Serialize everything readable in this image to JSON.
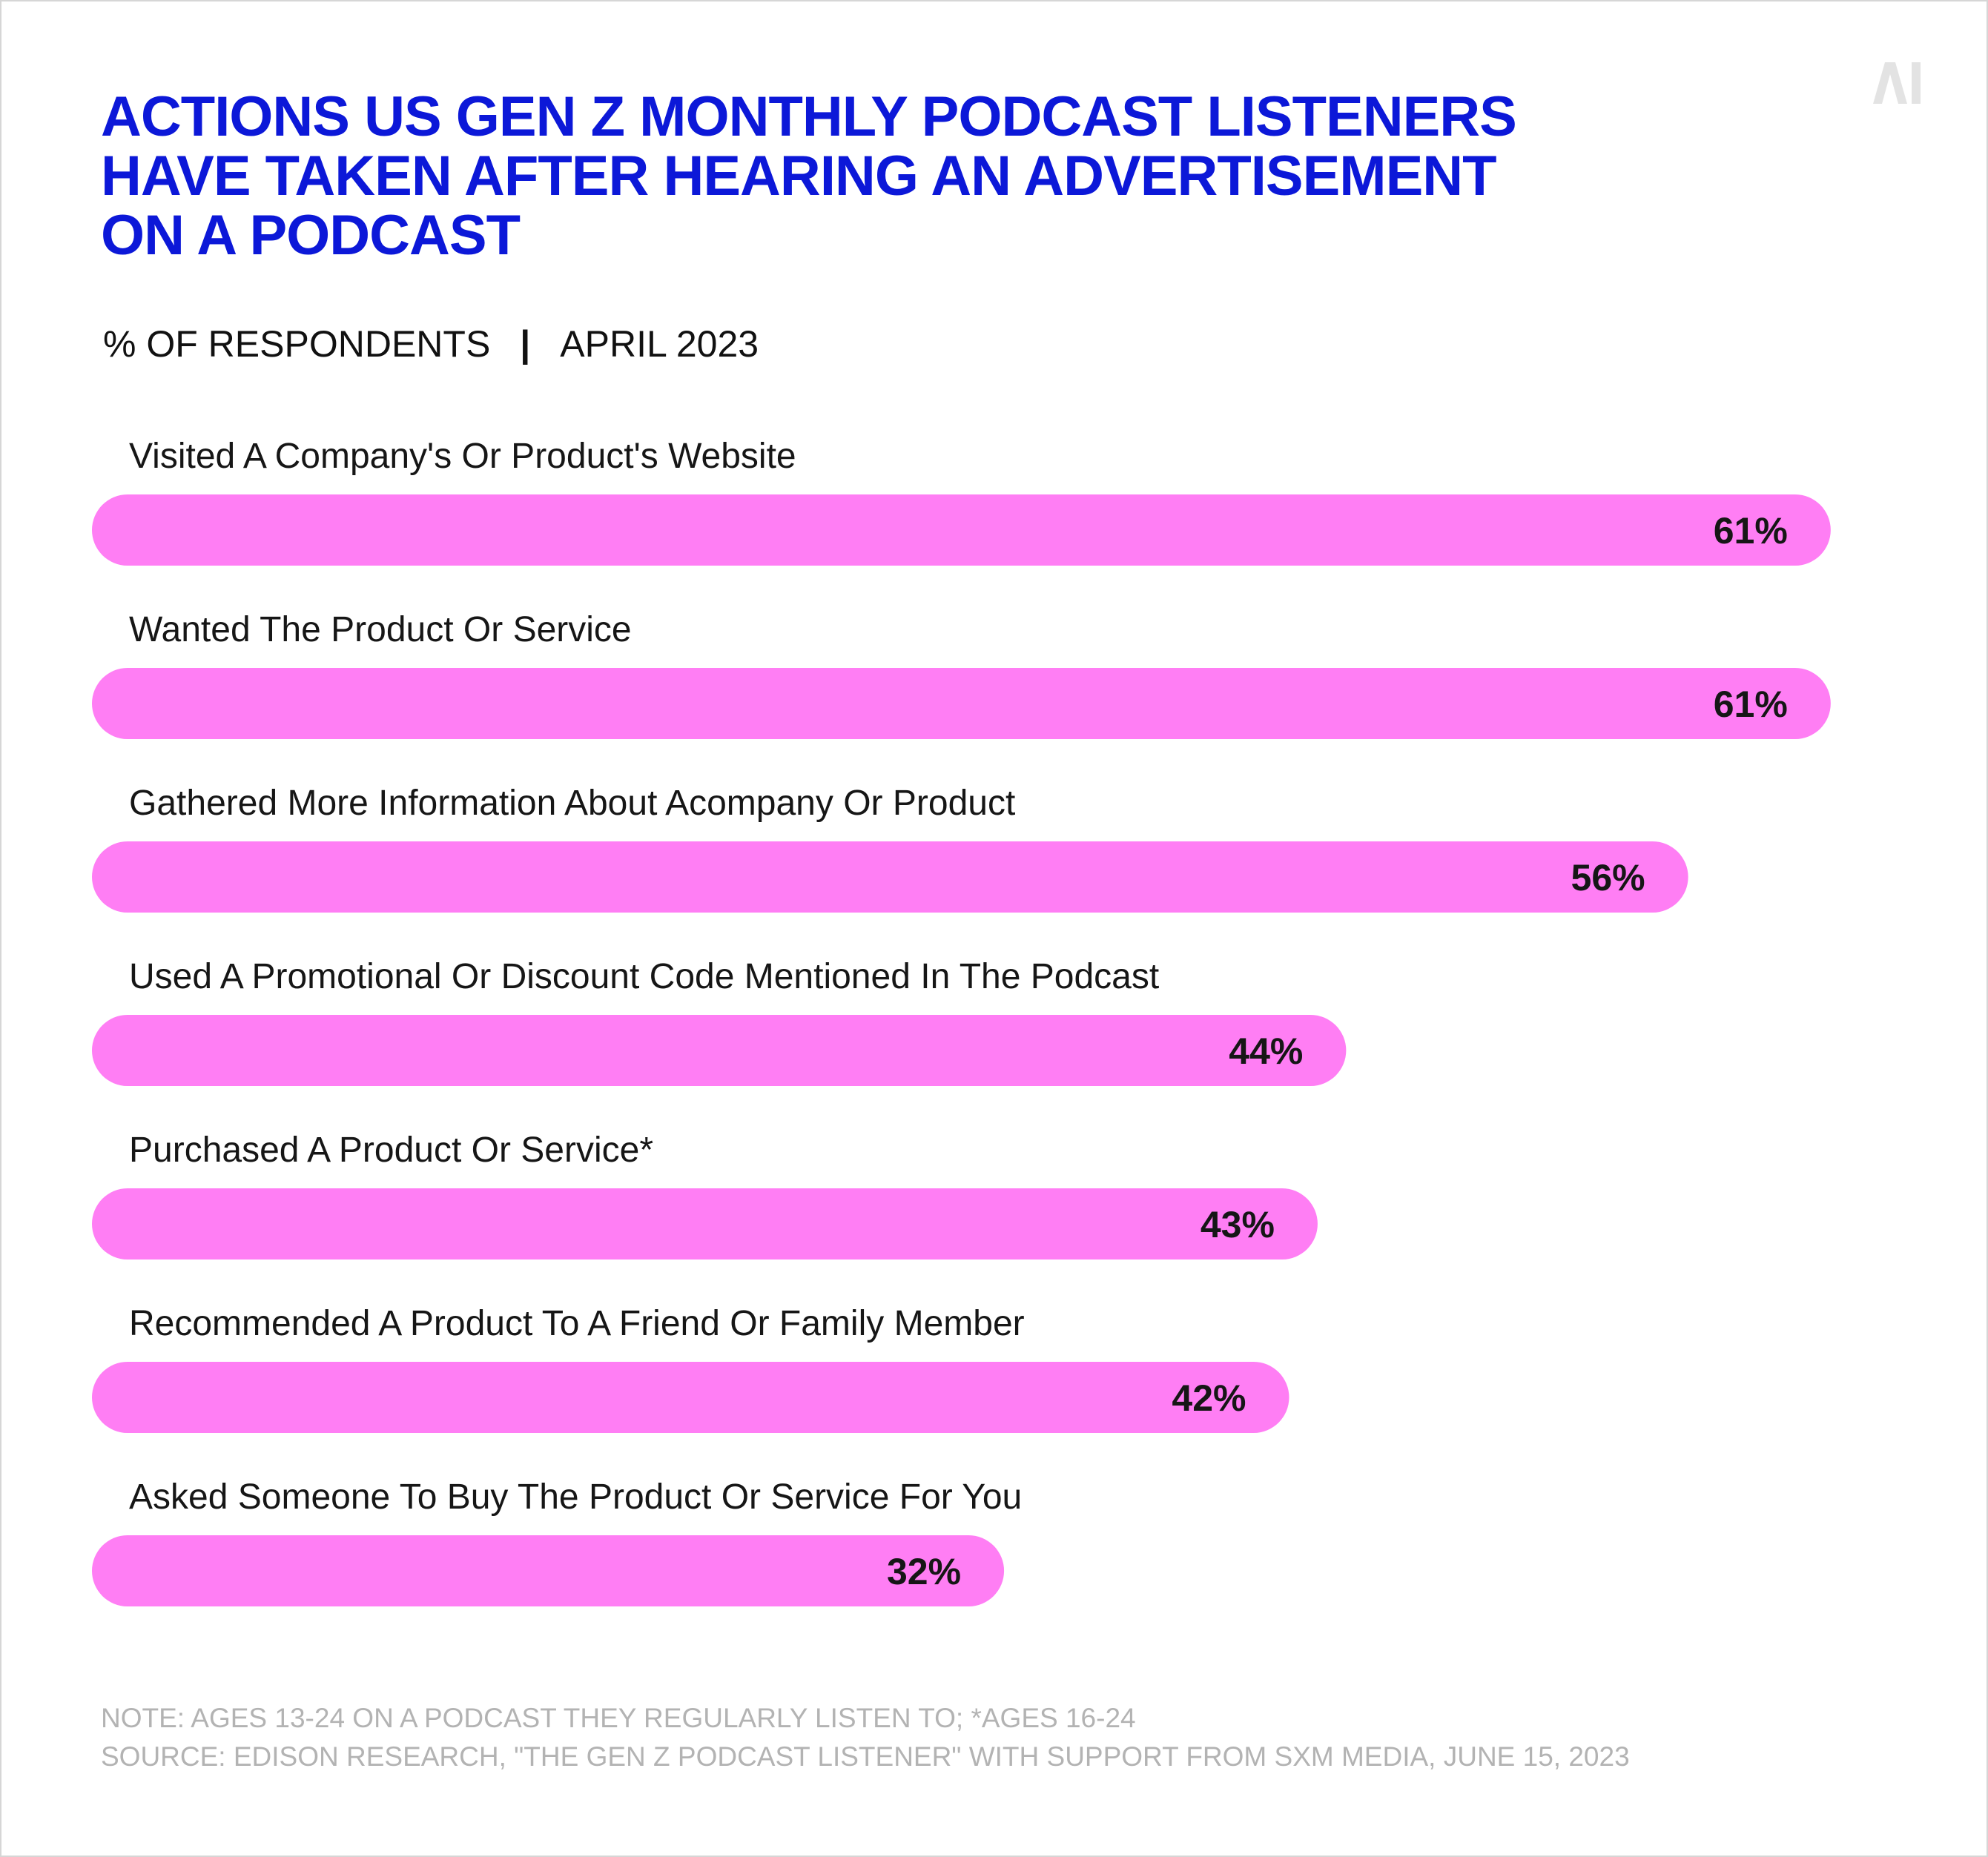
{
  "header": {
    "title_lines": [
      "ACTIONS US GEN Z MONTHLY PODCAST LISTENERS",
      "HAVE TAKEN AFTER HEARING AN ADVERTISEMENT",
      "ON A PODCAST"
    ],
    "subtitle_left": "% OF RESPONDENTS",
    "subtitle_separator": "|",
    "subtitle_right": "APRIL 2023",
    "logo_text": "AI"
  },
  "chart_data": {
    "type": "bar",
    "orientation": "horizontal",
    "title": "ACTIONS US GEN Z MONTHLY PODCAST LISTENERS HAVE TAKEN AFTER HEARING AN ADVERTISEMENT ON A PODCAST",
    "subtitle": "% OF RESPONDENTS | APRIL 2023",
    "categories": [
      "Visited A Company's Or Product's Website",
      "Wanted The Product Or Service",
      "Gathered More Information About Acompany Or Product",
      "Used A Promotional Or Discount Code Mentioned In The Podcast",
      "Purchased A Product Or Service*",
      "Recommended A Product To A Friend Or Family Member",
      "Asked Someone To Buy The Product Or Service For You"
    ],
    "values": [
      61,
      61,
      56,
      44,
      43,
      42,
      32
    ],
    "value_labels": [
      "61%",
      "61%",
      "56%",
      "44%",
      "43%",
      "42%",
      "32%"
    ],
    "unit": "%",
    "bar_color": "#ff7ef4",
    "grid": false,
    "legend": "none"
  },
  "footer": {
    "note": "NOTE: AGES 13-24 ON A PODCAST THEY REGULARLY LISTEN TO; *AGES 16-24",
    "source": "SOURCE: EDISON RESEARCH, \"THE GEN Z PODCAST LISTENER\" WITH SUPPORT FROM SXM MEDIA, JUNE 15, 2023"
  },
  "colors": {
    "title": "#0c18d8",
    "bar": "#ff7ef4",
    "footer_text": "#b3b3b3",
    "logo": "#e3e3e3"
  }
}
